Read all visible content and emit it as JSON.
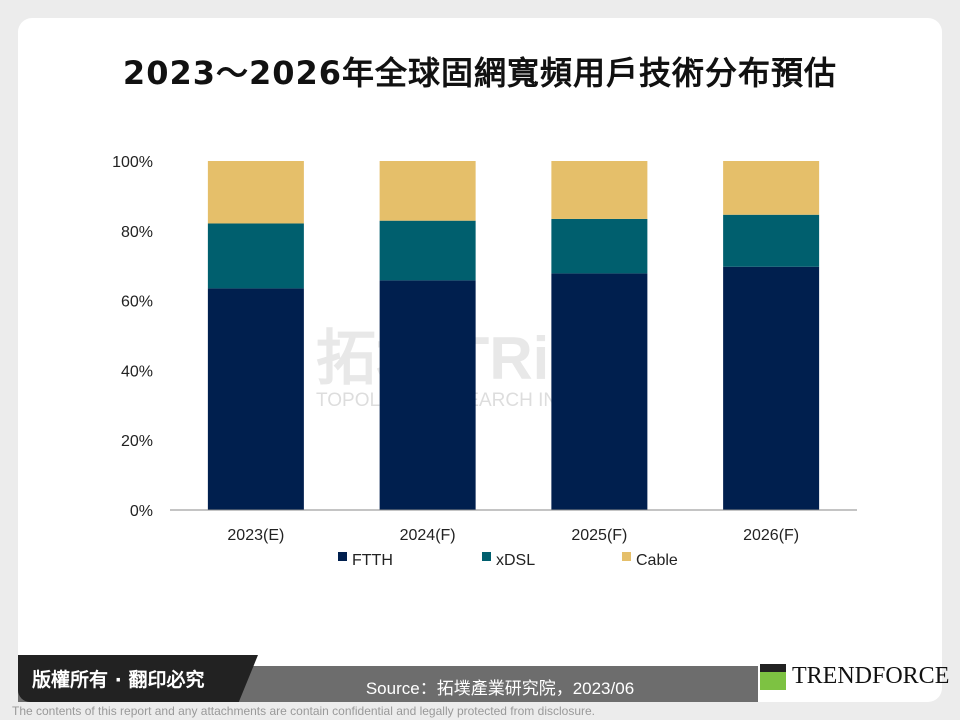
{
  "title": "2023～2026年全球固網寬頻用戶技術分布預估",
  "watermark": {
    "name": "拓墣 TRi",
    "subtitle": "TOPOLOGY RESEARCH INSTITUTE"
  },
  "chart_data": {
    "type": "bar",
    "stacked": true,
    "categories": [
      "2023(E)",
      "2024(F)",
      "2025(F)",
      "2026(F)"
    ],
    "series": [
      {
        "name": "FTTH",
        "values": [
          63.5,
          65.8,
          67.8,
          69.7
        ],
        "color": "#001f4e"
      },
      {
        "name": "xDSL",
        "values": [
          18.6,
          17.1,
          15.6,
          14.9
        ],
        "color": "#005f6e"
      },
      {
        "name": "Cable",
        "values": [
          17.9,
          17.1,
          16.6,
          15.4
        ],
        "color": "#e5bf6a"
      }
    ],
    "yticks": [
      "0%",
      "20%",
      "40%",
      "60%",
      "80%",
      "100%"
    ],
    "ylim": [
      0,
      100
    ],
    "grid": false,
    "legend": "bottom"
  },
  "footer": {
    "copyright": "版權所有 · 翻印必究",
    "source": "Source：拓墣產業研究院，2023/06",
    "logo": "TRENDFORCE",
    "disclaimer": "The contents of this report and any attachments are contain confidential and legally protected from disclosure."
  }
}
